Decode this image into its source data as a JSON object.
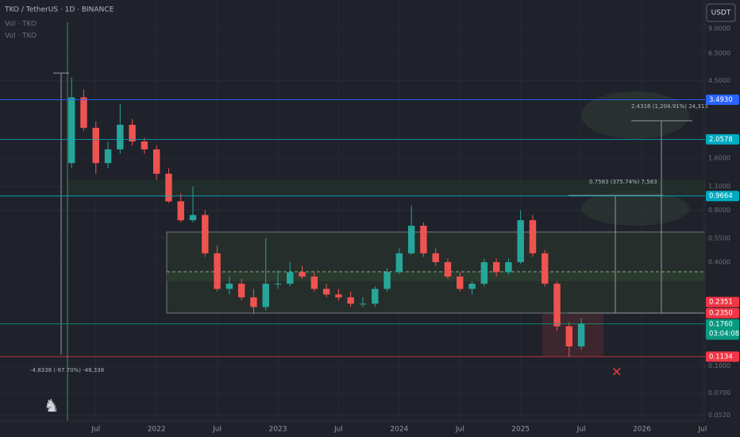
{
  "chart_data": {
    "type": "candlestick",
    "title": "TKO / TetherUS · 1D · BINANCE",
    "legend_lines": [
      "Vol · TKO",
      "Vol · TKO"
    ],
    "currency_button": "USDT",
    "log_scale": true,
    "x": [
      2021.3,
      2021.4,
      2021.5,
      2021.6,
      2021.7,
      2021.8,
      2021.9,
      2022.0,
      2022.1,
      2022.2,
      2022.3,
      2022.4,
      2022.5,
      2022.6,
      2022.7,
      2022.8,
      2022.9,
      2023.0,
      2023.1,
      2023.2,
      2023.3,
      2023.4,
      2023.5,
      2023.6,
      2023.7,
      2023.8,
      2023.9,
      2024.0,
      2024.1,
      2024.2,
      2024.3,
      2024.4,
      2024.5,
      2024.6,
      2024.7,
      2024.8,
      2024.9,
      2025.0,
      2025.1,
      2025.2,
      2025.3,
      2025.4,
      2025.5
    ],
    "open": [
      1.5,
      3.6,
      2.4,
      1.5,
      1.8,
      2.5,
      2.0,
      1.8,
      1.3,
      0.9,
      0.7,
      0.75,
      0.45,
      0.28,
      0.3,
      0.25,
      0.22,
      0.3,
      0.3,
      0.35,
      0.33,
      0.28,
      0.26,
      0.25,
      0.23,
      0.23,
      0.28,
      0.35,
      0.45,
      0.65,
      0.45,
      0.4,
      0.33,
      0.28,
      0.3,
      0.4,
      0.35,
      0.4,
      0.7,
      0.45,
      0.3,
      0.17,
      0.13
    ],
    "high": [
      4.7,
      4.0,
      2.6,
      2.0,
      3.3,
      2.7,
      2.1,
      1.9,
      1.4,
      1.0,
      1.1,
      0.8,
      0.5,
      0.33,
      0.32,
      0.28,
      0.55,
      0.36,
      0.4,
      0.38,
      0.35,
      0.3,
      0.28,
      0.27,
      0.25,
      0.29,
      0.37,
      0.48,
      0.85,
      0.68,
      0.48,
      0.42,
      0.35,
      0.31,
      0.42,
      0.42,
      0.42,
      0.8,
      0.75,
      0.47,
      0.31,
      0.18,
      0.19
    ],
    "low": [
      1.4,
      2.3,
      1.3,
      1.4,
      1.7,
      1.9,
      1.7,
      1.2,
      0.88,
      0.68,
      0.68,
      0.43,
      0.27,
      0.26,
      0.24,
      0.2,
      0.21,
      0.28,
      0.29,
      0.32,
      0.27,
      0.25,
      0.24,
      0.22,
      0.22,
      0.22,
      0.27,
      0.34,
      0.44,
      0.43,
      0.38,
      0.32,
      0.27,
      0.26,
      0.29,
      0.33,
      0.34,
      0.39,
      0.43,
      0.29,
      0.16,
      0.113,
      0.125
    ],
    "close": [
      3.6,
      2.4,
      1.5,
      1.8,
      2.5,
      2.0,
      1.8,
      1.3,
      0.9,
      0.7,
      0.75,
      0.45,
      0.28,
      0.3,
      0.25,
      0.22,
      0.3,
      0.3,
      0.35,
      0.33,
      0.28,
      0.26,
      0.25,
      0.23,
      0.23,
      0.28,
      0.35,
      0.45,
      0.65,
      0.45,
      0.4,
      0.33,
      0.28,
      0.3,
      0.4,
      0.35,
      0.4,
      0.7,
      0.45,
      0.3,
      0.17,
      0.13,
      0.176
    ],
    "up_color": "#26a69a",
    "down_color": "#ef5350",
    "xlim": [
      2020.71,
      2026.52
    ],
    "xticks": [
      {
        "value": 2021.5,
        "label": "Jul"
      },
      2022,
      {
        "value": 2022.5,
        "label": "Jul"
      },
      2023,
      {
        "value": 2023.5,
        "label": "Jul"
      },
      2024,
      {
        "value": 2024.5,
        "label": "Jul"
      },
      2025,
      {
        "value": 2025.5,
        "label": "Jul"
      },
      2026,
      {
        "value": 2026.5,
        "label": "Jul"
      }
    ],
    "ylim": [
      0.048,
      13.2
    ],
    "yticks": [
      {
        "value": 9,
        "label": "9.0000"
      },
      {
        "value": 6.5,
        "label": "6.5000"
      },
      {
        "value": 4.5,
        "label": "4.5000"
      },
      {
        "value": 1.6,
        "label": "1.6000"
      },
      {
        "value": 1.1,
        "label": "1.1000"
      },
      {
        "value": 0.8,
        "label": "0.8000"
      },
      {
        "value": 0.55,
        "label": "0.5500"
      },
      {
        "value": 0.4,
        "label": "0.4000"
      },
      {
        "value": 0.1,
        "label": "0.1000"
      },
      {
        "value": 0.07,
        "label": "0.0700"
      },
      {
        "value": 0.052,
        "label": "0.0520"
      }
    ],
    "levels": [
      {
        "value": 3.493,
        "label": "3.4930",
        "color": "#2962ff",
        "line": true
      },
      {
        "value": 2.0578,
        "label": "2.0578",
        "color": "#00acc1",
        "line": true
      },
      {
        "value": 0.9664,
        "label": "0.9664",
        "color": "#00acc1",
        "line": true
      },
      {
        "value": 0.2351,
        "label": "0.2351",
        "color": "#f23645",
        "line": false
      },
      {
        "value": 0.235,
        "label": "0.2350",
        "color": "#f23645",
        "line": false
      },
      {
        "value": 0.176,
        "label": "0.1760",
        "color": "#089981",
        "line": true
      },
      {
        "value": 0.1134,
        "label": "0.1134",
        "color": "#f23645",
        "line": true
      }
    ],
    "countdown": "03:04:08",
    "annotations": [
      "2.4316 (1,204.91%) 24,316",
      "0.7583 (375.74%) 7,583",
      "-4.8338 (-97.70%) -48,338"
    ]
  }
}
